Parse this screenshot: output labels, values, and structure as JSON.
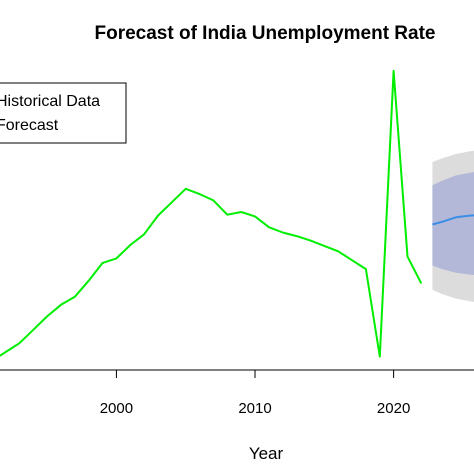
{
  "chart_data": {
    "type": "line",
    "title": "Forecast of India Unemployment Rate",
    "xlabel": "Year",
    "ylabel": "",
    "xlim": [
      1991.6,
      2025.8
    ],
    "ylim": [
      4.65,
      8.1
    ],
    "x_ticks": [
      2000,
      2010,
      2020
    ],
    "legend": {
      "placement": "top-left",
      "entries": [
        "Historical Data",
        "Forecast"
      ]
    },
    "series": [
      {
        "name": "Historical Data",
        "color": "#00ee00",
        "x": [
          1991,
          1992,
          1993,
          1994,
          1995,
          1996,
          1997,
          1998,
          1999,
          2000,
          2001,
          2002,
          2003,
          2004,
          2005,
          2006,
          2007,
          2008,
          2009,
          2010,
          2011,
          2012,
          2013,
          2014,
          2015,
          2016,
          2017,
          2018,
          2019,
          2020,
          2021,
          2022
        ],
        "y": [
          4.75,
          4.85,
          4.95,
          5.1,
          5.25,
          5.38,
          5.47,
          5.65,
          5.85,
          5.9,
          6.05,
          6.17,
          6.38,
          6.53,
          6.68,
          6.62,
          6.55,
          6.39,
          6.42,
          6.37,
          6.25,
          6.19,
          6.15,
          6.1,
          6.04,
          5.98,
          5.88,
          5.78,
          4.8,
          8.0,
          5.92,
          5.62
        ]
      },
      {
        "name": "Forecast",
        "color": "#3a8ee6",
        "x": [
          2022.8,
          2023.5,
          2024.5,
          2025.5,
          2026.5
        ],
        "y": [
          6.28,
          6.31,
          6.36,
          6.38,
          6.39
        ],
        "band_95": {
          "color": "#dcdcdc",
          "lower": [
            5.55,
            5.5,
            5.45,
            5.42,
            5.4
          ],
          "upper": [
            6.98,
            7.02,
            7.07,
            7.1,
            7.12
          ]
        },
        "band_80": {
          "color": "#b4b8d8",
          "lower": [
            5.82,
            5.78,
            5.74,
            5.72,
            5.7
          ],
          "upper": [
            6.72,
            6.77,
            6.83,
            6.86,
            6.88
          ]
        }
      }
    ]
  }
}
